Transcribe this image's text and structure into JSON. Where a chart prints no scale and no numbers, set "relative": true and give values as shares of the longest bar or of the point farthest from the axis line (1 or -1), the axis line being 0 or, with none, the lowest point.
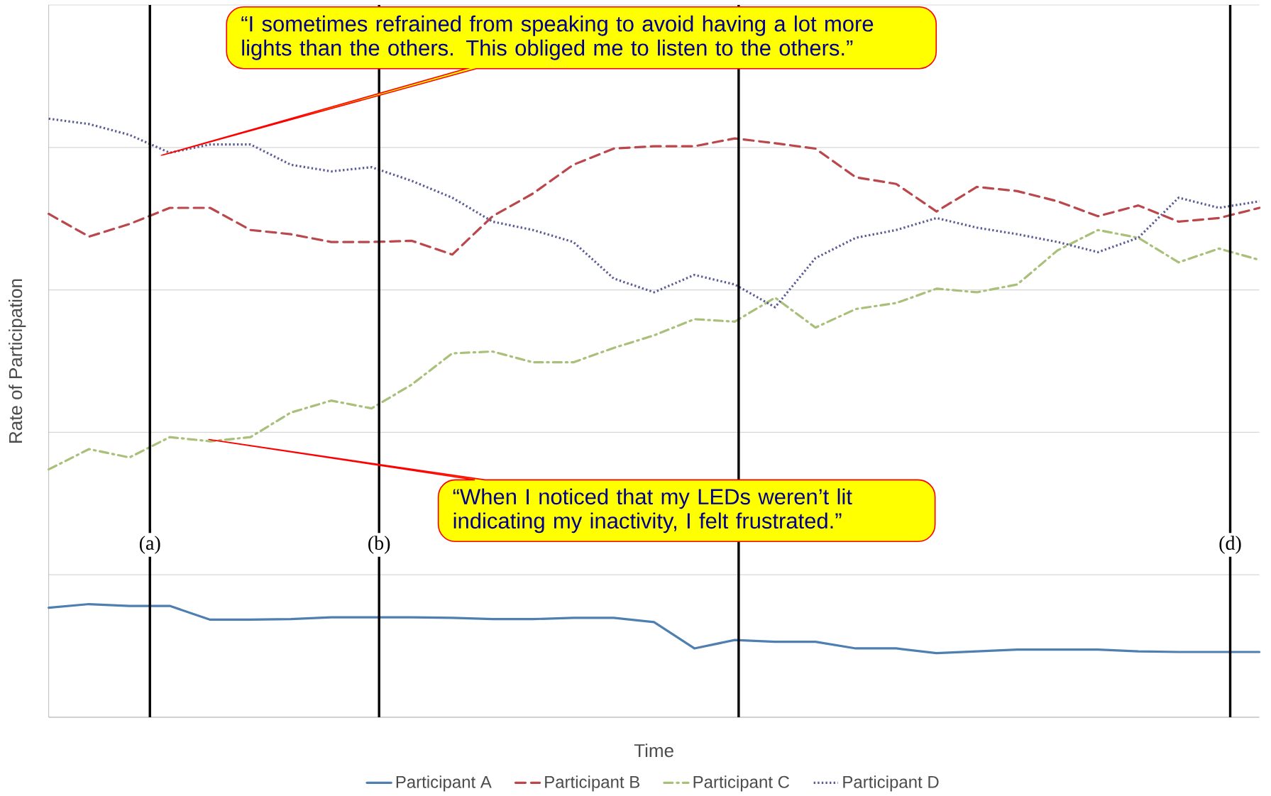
{
  "chart_data": {
    "type": "line",
    "relative": true,
    "xlabel": "Time",
    "ylabel": "Rate of Participation",
    "grid": "y",
    "legend": "bottom",
    "categories": [
      null,
      null,
      null,
      null,
      null,
      null,
      null,
      null,
      null,
      null,
      null,
      null,
      null,
      null,
      null,
      null,
      null,
      null,
      null,
      null,
      null,
      null,
      null,
      null,
      null,
      null,
      null,
      null,
      null,
      null,
      null
    ],
    "series": [
      {
        "name": "Participant A",
        "color": "#4f7fb0",
        "line_style": "solid",
        "values": [
          0.183,
          0.189,
          0.186,
          0.186,
          0.163,
          0.163,
          0.164,
          0.167,
          0.167,
          0.167,
          0.166,
          0.164,
          0.164,
          0.166,
          0.166,
          0.159,
          0.115,
          0.129,
          0.126,
          0.126,
          0.115,
          0.115,
          0.107,
          0.11,
          0.113,
          0.113,
          0.113,
          0.11,
          0.109,
          0.109,
          0.109
        ]
      },
      {
        "name": "Participant B",
        "color": "#b9474b",
        "line_style": "dashed",
        "values": [
          0.841,
          0.803,
          0.824,
          0.851,
          0.851,
          0.814,
          0.807,
          0.794,
          0.794,
          0.796,
          0.773,
          0.837,
          0.875,
          0.923,
          0.95,
          0.954,
          0.954,
          0.967,
          0.959,
          0.95,
          0.902,
          0.891,
          0.845,
          0.886,
          0.879,
          0.862,
          0.837,
          0.855,
          0.828,
          0.834,
          0.851
        ]
      },
      {
        "name": "Participant C",
        "color": "#a9c07a",
        "line_style": "dashdot",
        "values": [
          0.414,
          0.448,
          0.434,
          0.468,
          0.461,
          0.468,
          0.509,
          0.529,
          0.516,
          0.556,
          0.608,
          0.611,
          0.593,
          0.593,
          0.617,
          0.638,
          0.665,
          0.661,
          0.701,
          0.651,
          0.682,
          0.692,
          0.716,
          0.71,
          0.723,
          0.78,
          0.814,
          0.801,
          0.76,
          0.783,
          0.764
        ]
      },
      {
        "name": "Participant D",
        "color": "#5c5c96",
        "line_style": "dotted",
        "values": [
          1.0,
          0.991,
          0.973,
          0.943,
          0.957,
          0.957,
          0.923,
          0.912,
          0.919,
          0.896,
          0.868,
          0.828,
          0.814,
          0.794,
          0.733,
          0.71,
          0.739,
          0.723,
          0.685,
          0.767,
          0.801,
          0.814,
          0.834,
          0.818,
          0.807,
          0.794,
          0.777,
          0.801,
          0.868,
          0.851,
          0.862
        ]
      }
    ],
    "annotations": [
      "“I sometimes refrained from speaking to avoid having a lot more lights than the others. This obliged me to listen to the others.”",
      "“When I noticed that my LEDs weren’t lit indicating my inactivity, I felt frustrated.”",
      "(a)",
      "(b)",
      "(d)"
    ]
  }
}
